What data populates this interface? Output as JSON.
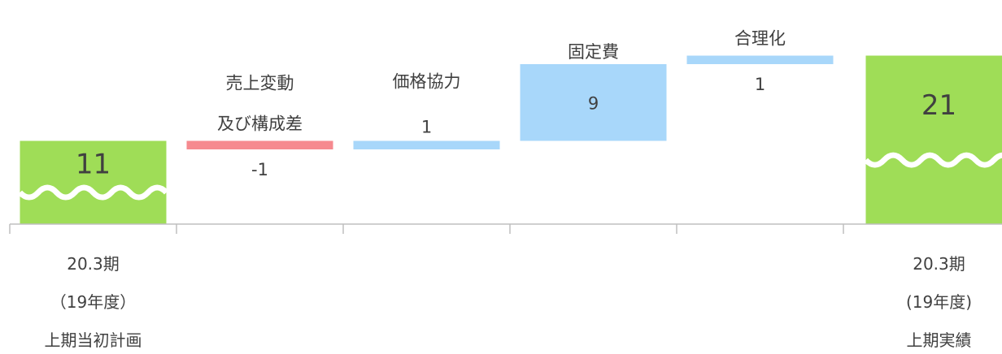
{
  "chart_data": {
    "type": "waterfall",
    "colors": {
      "total": "#9fdd57",
      "increase": "#a8d7fa",
      "decrease": "#f68a8f",
      "axis": "#bfbfbf",
      "text": "#404040",
      "wave": "#ffffff"
    },
    "axis_break": true,
    "items": [
      {
        "kind": "total",
        "value": 11,
        "label_lines": [],
        "value_label": "11",
        "xlabel": [
          "20.3期",
          "（19年度）",
          "上期当初計画"
        ]
      },
      {
        "kind": "delta",
        "value": -1,
        "label_lines": [
          "売上変動",
          "及び構成差"
        ],
        "value_label": "-1",
        "xlabel": []
      },
      {
        "kind": "delta",
        "value": 1,
        "label_lines": [
          "価格協力"
        ],
        "value_label": "1",
        "xlabel": []
      },
      {
        "kind": "delta",
        "value": 9,
        "label_lines": [
          "固定費"
        ],
        "value_label": "9",
        "xlabel": []
      },
      {
        "kind": "delta",
        "value": 1,
        "label_lines": [
          "合理化"
        ],
        "value_label": "1",
        "xlabel": []
      },
      {
        "kind": "total",
        "value": 21,
        "label_lines": [],
        "value_label": "21",
        "xlabel": [
          "20.3期",
          "(19年度)",
          "上期実績"
        ]
      }
    ]
  }
}
